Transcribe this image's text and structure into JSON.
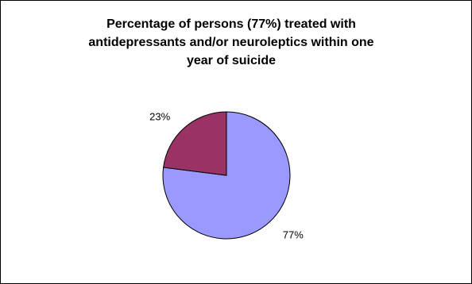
{
  "chart_data": {
    "type": "pie",
    "title_lines": [
      "Percentage of persons (77%) treated with",
      "antidepressants and/or neuroleptics within one",
      "year of suicide"
    ],
    "slices": [
      {
        "label": "77%",
        "value": 77,
        "color": "#9999ff"
      },
      {
        "label": "23%",
        "value": 23,
        "color": "#993366"
      }
    ],
    "legend": "none"
  }
}
